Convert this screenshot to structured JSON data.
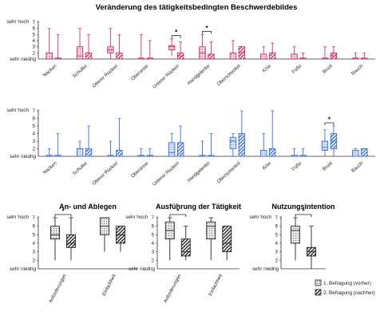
{
  "chart_data": {
    "type": "boxplot",
    "title": "Veränderung des tätigkeitsbedingten Beschwerdebildes",
    "legend": {
      "placement": "bottom-right",
      "entries": [
        {
          "label": "1. Befragung (vorher)",
          "pattern": "dotted"
        },
        {
          "label": "2. Befragung (nachher)",
          "pattern": "hatched"
        }
      ]
    },
    "panels": [
      {
        "id": "top",
        "title": "",
        "color": "#c9336a",
        "axis": {
          "high_label": "sehr hoch",
          "low_label": "sehr niedrig",
          "ticks": [
            2,
            3,
            4,
            5,
            6,
            7
          ],
          "ylim": [
            1,
            7
          ]
        },
        "categories": [
          "Nacken",
          "Schulter",
          "Oberer Rücken",
          "Oberarme",
          "Unterer Rücken",
          "Handgelenke",
          "Oberschenkel",
          "Knie",
          "Füße",
          "Brust",
          "Bauch"
        ],
        "series": [
          {
            "name": "1. Befragung (vorher)",
            "boxes": [
              [
                1,
                1,
                1,
                2,
                6
              ],
              [
                1,
                1,
                1.5,
                3,
                6
              ],
              [
                1,
                2,
                2.5,
                3,
                6
              ],
              [
                1,
                1,
                1,
                1,
                5
              ],
              [
                1.5,
                2.5,
                3,
                3.2,
                4.3
              ],
              [
                1,
                1,
                2,
                3,
                5
              ],
              [
                1,
                1,
                1,
                2,
                4
              ],
              [
                1,
                1,
                1,
                1.8,
                3
              ],
              [
                1,
                1,
                1,
                1.8,
                3
              ],
              [
                1,
                1,
                1,
                1,
                3
              ],
              [
                1,
                1,
                1,
                1,
                2
              ]
            ]
          },
          {
            "name": "2. Befragung (nachher)",
            "boxes": [
              [
                1,
                1,
                1,
                1,
                5
              ],
              [
                1,
                1,
                1,
                2,
                5
              ],
              [
                1,
                1,
                1,
                2,
                5
              ],
              [
                1,
                1,
                1,
                1,
                4
              ],
              [
                1,
                1,
                1.5,
                2,
                3.8
              ],
              [
                1,
                1,
                1,
                1.8,
                3.8
              ],
              [
                1,
                1,
                2,
                3,
                3
              ],
              [
                1,
                1,
                1,
                2,
                3.6
              ],
              [
                1,
                1,
                1,
                1,
                2
              ],
              [
                1,
                1,
                1.5,
                2,
                3
              ],
              [
                1,
                1,
                1,
                1,
                2
              ]
            ]
          }
        ],
        "significance": [
          {
            "category": "Unterer Rücken",
            "label": "*"
          },
          {
            "category": "Handgelenke",
            "label": "*"
          }
        ]
      },
      {
        "id": "middle",
        "title": "",
        "color": "#3a6fd4",
        "axis": {
          "high_label": "sehr hoch",
          "low_label": "sehr niedrig",
          "ticks": [
            2,
            3,
            4,
            5,
            6,
            7
          ],
          "ylim": [
            1,
            7
          ]
        },
        "categories": [
          "Nacken",
          "Schulter",
          "Oberer Rücken",
          "Oberarme",
          "Unterer Rücken",
          "Handgelenke",
          "Oberschenkel",
          "Knie",
          "Füße",
          "Brust",
          "Bauch"
        ],
        "series": [
          {
            "name": "1. Befragung (vorher)",
            "boxes": [
              [
                1,
                1,
                1,
                1,
                2
              ],
              [
                1,
                1,
                1,
                2,
                3
              ],
              [
                1,
                1,
                1,
                1,
                3
              ],
              [
                1,
                1,
                1,
                1,
                2
              ],
              [
                1,
                1,
                1.5,
                2.8,
                4
              ],
              [
                1,
                1,
                1,
                1,
                3
              ],
              [
                1,
                2,
                3,
                3.5,
                4
              ],
              [
                1,
                1,
                1,
                1.8,
                4
              ],
              [
                1,
                1,
                1,
                1,
                2
              ],
              [
                1,
                1.8,
                2.2,
                3,
                4.5
              ],
              [
                1,
                1,
                1,
                1.8,
                2
              ]
            ]
          },
          {
            "name": "2. Befragung (nachher)",
            "boxes": [
              [
                1,
                1,
                1,
                1,
                4
              ],
              [
                1,
                1,
                1,
                2,
                5
              ],
              [
                1,
                1,
                1,
                1.8,
                6
              ],
              [
                1,
                1,
                1,
                1,
                2
              ],
              [
                1,
                1,
                1,
                2.8,
                5
              ],
              [
                1,
                1,
                1,
                1,
                4
              ],
              [
                1,
                1,
                1,
                4,
                7
              ],
              [
                1,
                1,
                1,
                2,
                7
              ],
              [
                1,
                1,
                1,
                1,
                2
              ],
              [
                1,
                2,
                3,
                4,
                5
              ],
              [
                1,
                1,
                1,
                2,
                2
              ]
            ]
          }
        ],
        "significance": [
          {
            "category": "Brust",
            "label": "*"
          }
        ]
      },
      {
        "id": "an-ablegen",
        "title": "An- und Ablegen",
        "color": "#222222",
        "axis": {
          "high_label": "sehr hoch",
          "low_label": "sehr niedrig",
          "ticks": [
            2,
            3,
            4,
            5,
            6,
            7
          ],
          "ylim": [
            1,
            7
          ]
        },
        "categories": [
          "Anforderungen",
          "Einfachheit"
        ],
        "series": [
          {
            "name": "1. Befragung (vorher)",
            "boxes": [
              [
                2,
                4.5,
                5,
                6,
                7
              ],
              [
                3,
                5,
                6,
                7,
                7
              ]
            ]
          },
          {
            "name": "2. Befragung (nachher)",
            "boxes": [
              [
                2,
                3.5,
                4,
                5,
                7
              ],
              [
                3,
                4,
                5,
                6,
                6
              ]
            ]
          }
        ],
        "significance": [
          {
            "category": "Anforderungen",
            "label": "*"
          }
        ]
      },
      {
        "id": "ausfuehrung",
        "title": "Ausführung der Tätigkeit",
        "color": "#222222",
        "axis": {
          "high_label": "sehr hoch",
          "low_label": "sehr niedrig",
          "ticks": [
            2,
            3,
            4,
            5,
            6,
            7
          ],
          "ylim": [
            1,
            7
          ]
        },
        "categories": [
          "Anforderungen",
          "Einfachheit"
        ],
        "series": [
          {
            "name": "1. Befragung (vorher)",
            "boxes": [
              [
                2,
                4.5,
                5.5,
                6.5,
                7
              ],
              [
                2,
                4.5,
                6,
                6.5,
                7
              ]
            ]
          },
          {
            "name": "2. Befragung (nachher)",
            "boxes": [
              [
                2,
                2.5,
                3,
                4.5,
                6
              ],
              [
                2,
                3,
                4,
                6,
                6
              ]
            ]
          }
        ],
        "significance": [
          {
            "category": "Anforderungen",
            "label": "*"
          }
        ]
      },
      {
        "id": "nutzungsintention",
        "title": "Nutzungsintention",
        "color": "#222222",
        "axis": {
          "high_label": "sehr hoch",
          "low_label": "sehr niedrig",
          "ticks": [
            2,
            3,
            4,
            5,
            6,
            7
          ],
          "ylim": [
            1,
            7
          ]
        },
        "categories": [
          ""
        ],
        "series": [
          {
            "name": "1. Befragung (vorher)",
            "boxes": [
              [
                2,
                4,
                5.5,
                6,
                7
              ]
            ]
          },
          {
            "name": "2. Befragung (nachher)",
            "boxes": [
              [
                1,
                2.5,
                3,
                3.5,
                6
              ]
            ]
          }
        ],
        "significance": [
          {
            "category": "",
            "label": "*"
          }
        ]
      }
    ]
  }
}
